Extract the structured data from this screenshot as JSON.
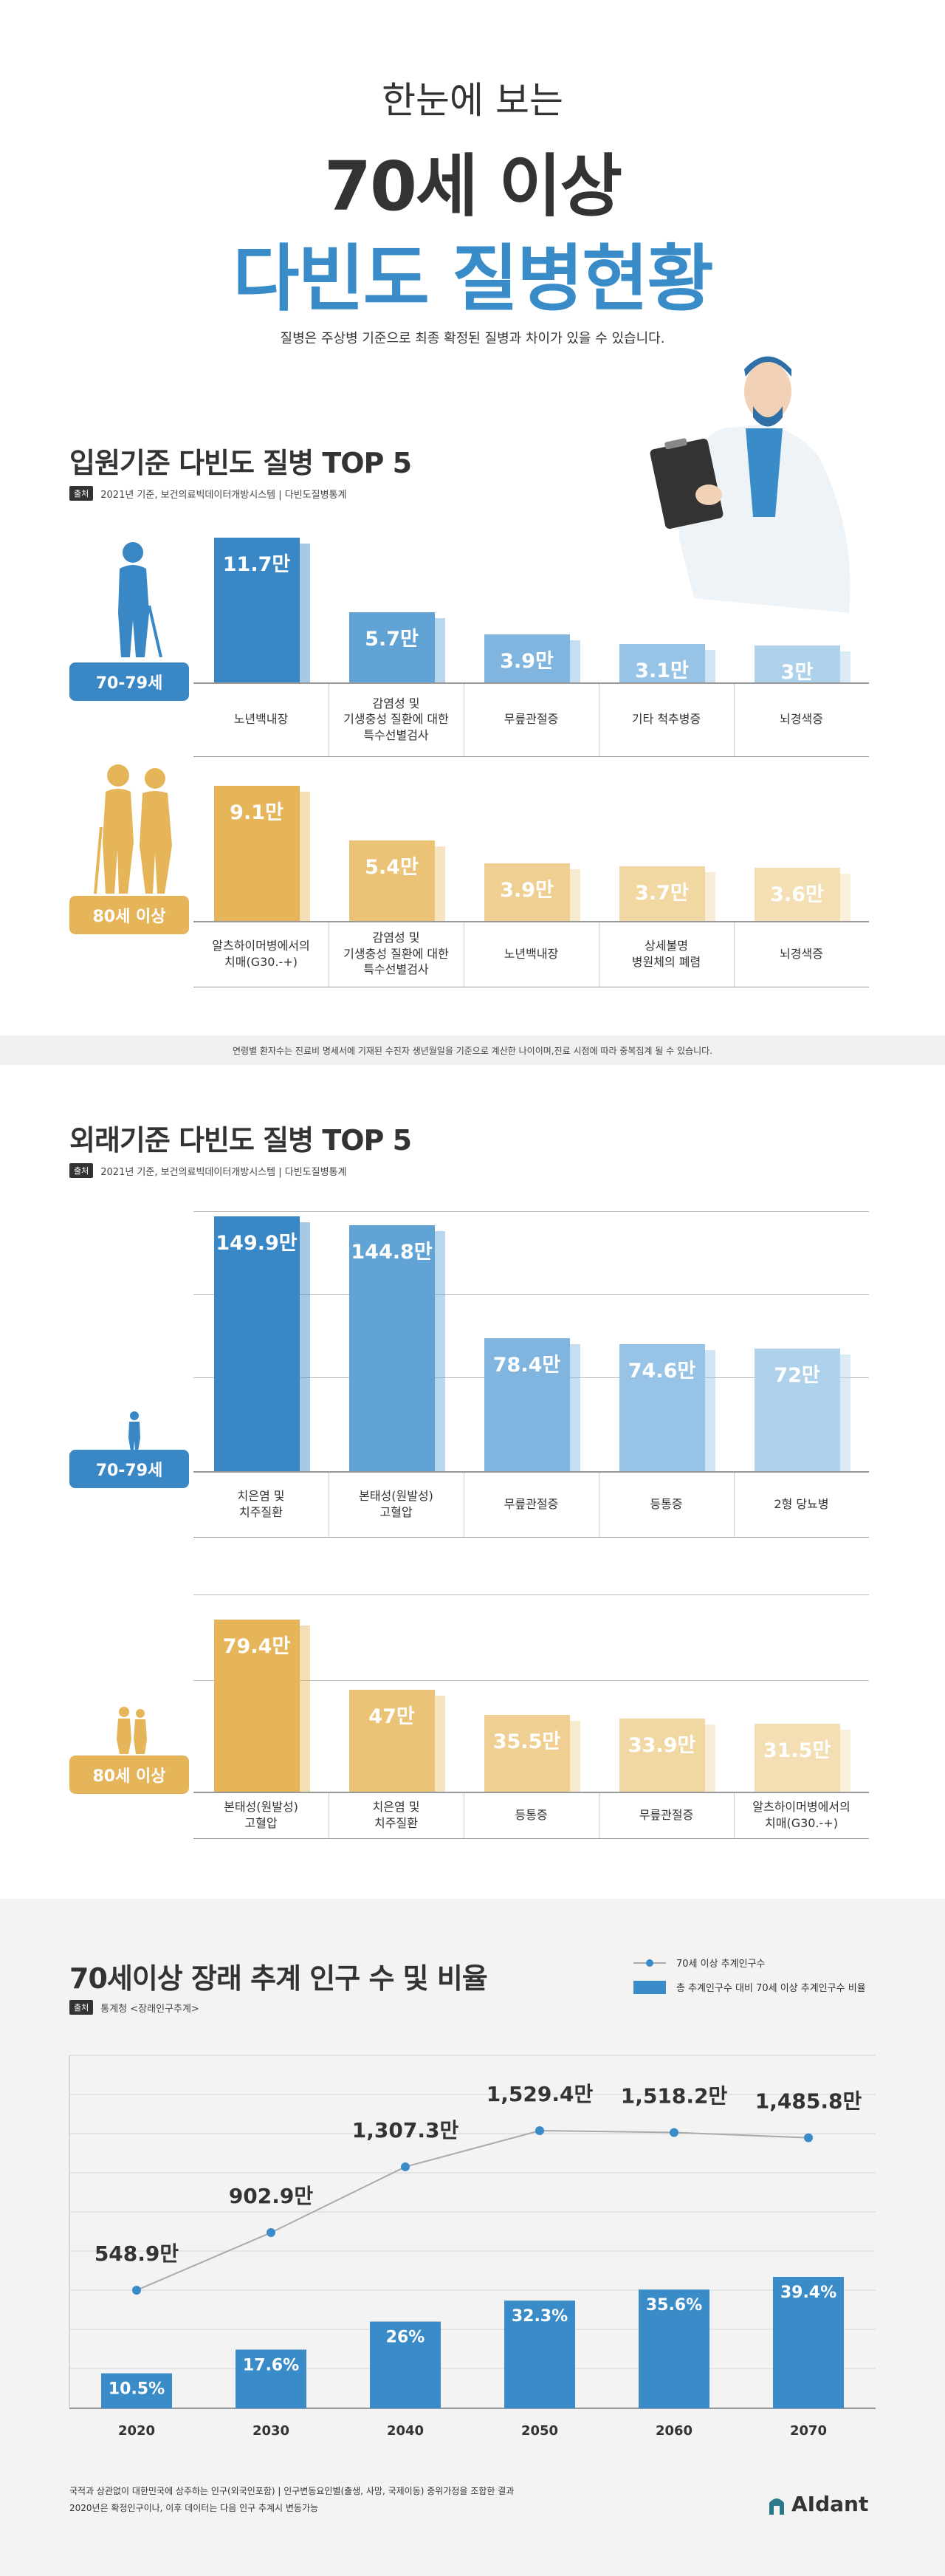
{
  "header": {
    "line1": "한눈에 보는",
    "line2": "70세 이상",
    "line3": "다빈도 질병현황",
    "note": "질병은 주상병 기준으로 최종 확정된 질병과 차이가 있을 수 있습니다."
  },
  "sections": [
    {
      "title": "입원기준 다빈도 질병 TOP 5",
      "source_tag": "출처",
      "source": "2021년 기준, 보건의료빅데이터개방시스템 | 다빈도질병통계",
      "footnote": "연령별 환자수는 진료비 명세서에 기재된 수진자 생년월일을 기준으로 계산한 나이이며,진료 시점에 따라 중복집계 될 수 있습니다."
    },
    {
      "title": "외래기준 다빈도 질병 TOP 5",
      "source_tag": "출처",
      "source": "2021년 기준, 보건의료빅데이터개방시스템 | 다빈도질병통계"
    },
    {
      "title": "70세이상 장래 추계 인구 수 및 비율",
      "source_tag": "출처",
      "source": "통계청 <장래인구추계>"
    }
  ],
  "chart_data": [
    {
      "type": "bar",
      "group": "70-79세",
      "categories": [
        "노년백내장",
        "감염성 및\n기생충성 질환에 대한\n특수선별검사",
        "무릎관절증",
        "기타 척추병증",
        "뇌경색증"
      ],
      "values": [
        11.7,
        5.7,
        3.9,
        3.1,
        3
      ],
      "value_labels": [
        "11.7만",
        "5.7만",
        "3.9만",
        "3.1만",
        "3만"
      ],
      "colors": [
        "#3a87c6",
        "#62a3d6",
        "#7fb5df",
        "#97c4e6",
        "#aed2ec"
      ]
    },
    {
      "type": "bar",
      "group": "80세 이상",
      "categories": [
        "알츠하이머병에서의\n치매(G30.-+)",
        "감염성 및\n기생충성 질환에 대한\n특수선별검사",
        "노년백내장",
        "상세불명\n병원체의 폐렴",
        "뇌경색증"
      ],
      "values": [
        9.1,
        5.4,
        3.9,
        3.7,
        3.6
      ],
      "value_labels": [
        "9.1만",
        "5.4만",
        "3.9만",
        "3.7만",
        "3.6만"
      ],
      "colors": [
        "#e6b55a",
        "#ebc377",
        "#efd092",
        "#f1d8a3",
        "#f3dfb3"
      ]
    },
    {
      "type": "bar",
      "group": "70-79세",
      "categories": [
        "치은염 및\n치주질환",
        "본태성(원발성)\n고혈압",
        "무릎관절증",
        "등통증",
        "2형 당뇨병"
      ],
      "values": [
        149.9,
        144.8,
        78.4,
        74.6,
        72
      ],
      "value_labels": [
        "149.9만",
        "144.8만",
        "78.4만",
        "74.6만",
        "72만"
      ],
      "colors": [
        "#3a87c6",
        "#62a3d6",
        "#7fb5df",
        "#97c4e6",
        "#aed2ec"
      ]
    },
    {
      "type": "bar",
      "group": "80세 이상",
      "categories": [
        "본태성(원발성)\n고혈압",
        "치은염 및\n치주질환",
        "등통증",
        "무릎관절증",
        "알츠하이머병에서의\n치매(G30.-+)"
      ],
      "values": [
        79.4,
        47,
        35.5,
        33.9,
        31.5
      ],
      "value_labels": [
        "79.4만",
        "47만",
        "35.5만",
        "33.9만",
        "31.5만"
      ],
      "colors": [
        "#e6b55a",
        "#ebc377",
        "#efd092",
        "#f1d8a3",
        "#f3dfb3"
      ]
    },
    {
      "type": "combo",
      "categories": [
        "2020",
        "2030",
        "2040",
        "2050",
        "2060",
        "2070"
      ],
      "series": [
        {
          "name": "70세 이상 추계인구수",
          "type": "line",
          "color": "#3a8cc8",
          "values": [
            548.9,
            902.9,
            1307.3,
            1529.4,
            1518.2,
            1485.8
          ],
          "value_labels": [
            "548.9만",
            "902.9만",
            "1,307.3만",
            "1,529.4만",
            "1,518.2만",
            "1,485.8만"
          ]
        },
        {
          "name": "총 추계인구수 대비 70세 이상 추계인구수 비율",
          "type": "bar",
          "color": "#3a8cc8",
          "values": [
            10.5,
            17.6,
            26,
            32.3,
            35.6,
            39.4
          ],
          "value_labels": [
            "10.5%",
            "17.6%",
            "26%",
            "32.3%",
            "35.6%",
            "39.4%"
          ]
        }
      ]
    }
  ],
  "footer": {
    "notes": [
      "국적과 상관없이 대한민국에 상주하는 인구(외국인포함) | 인구변동요인별(출생, 사망, 국제이동) 중위가정을 조합한 결과",
      "2020년은 확정인구이나, 이후 데이터는 다음 인구 추계시 변동가능"
    ],
    "brand": "AIdant"
  }
}
